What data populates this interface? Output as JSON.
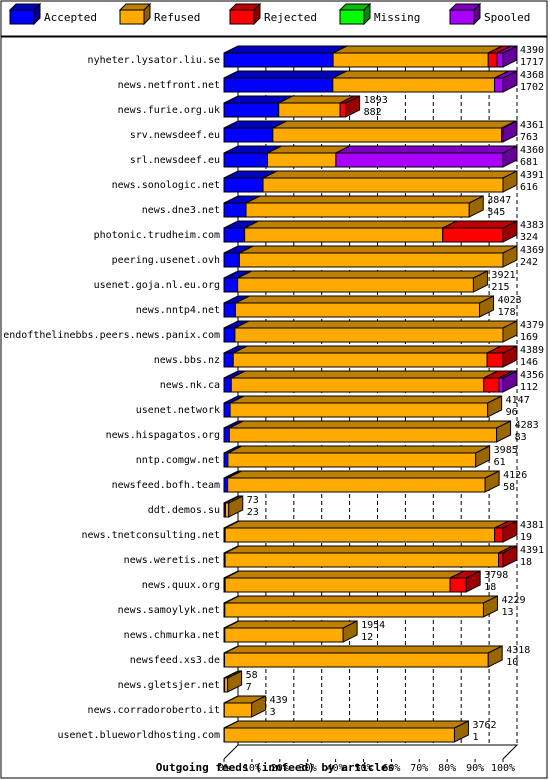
{
  "chart_data": {
    "type": "bar",
    "orientation": "horizontal",
    "stacked": true,
    "title": "Outgoing feeds (innfeed) by articles",
    "xlim": [
      0,
      100
    ],
    "x_ticks": [
      "0%",
      "10%",
      "20%",
      "30%",
      "40%",
      "50%",
      "60%",
      "70%",
      "80%",
      "90%",
      "100%"
    ],
    "grid": "vertical dashed",
    "legend_position": "top",
    "legend": [
      {
        "name": "Accepted",
        "color": "#0000ff"
      },
      {
        "name": "Refused",
        "color": "#ffaa00"
      },
      {
        "name": "Rejected",
        "color": "#ff0000"
      },
      {
        "name": "Missing",
        "color": "#00ff00"
      },
      {
        "name": "Spooled",
        "color": "#aa00ff"
      }
    ],
    "rows": [
      {
        "label": "nyheter.lysator.liu.se",
        "offered": "4390",
        "accepted": "1717",
        "segments": [
          39.1,
          55.6,
          3.2,
          0,
          2.1
        ]
      },
      {
        "label": "news.netfront.net",
        "offered": "4368",
        "accepted": "1702",
        "segments": [
          39.0,
          58.0,
          0,
          0,
          3.0
        ]
      },
      {
        "label": "news.furie.org.uk",
        "offered": "1893",
        "accepted": "882",
        "segments": [
          19.6,
          22.0,
          2.0,
          0,
          0
        ]
      },
      {
        "label": "srv.newsdeef.eu",
        "offered": "4361",
        "accepted": "763",
        "segments": [
          17.5,
          82.0,
          0,
          0,
          0.5
        ]
      },
      {
        "label": "srl.newsdeef.eu",
        "offered": "4360",
        "accepted": "681",
        "segments": [
          15.6,
          24.5,
          0,
          0,
          59.9
        ]
      },
      {
        "label": "news.sonologic.net",
        "offered": "4391",
        "accepted": "616",
        "segments": [
          14.0,
          86.0,
          0,
          0,
          0
        ]
      },
      {
        "label": "news.dne3.net",
        "offered": "3847",
        "accepted": "345",
        "segments": [
          7.9,
          80.0,
          0,
          0,
          0
        ]
      },
      {
        "label": "photonic.trudheim.com",
        "offered": "4383",
        "accepted": "324",
        "segments": [
          7.4,
          71.0,
          21.6,
          0,
          0
        ]
      },
      {
        "label": "peering.usenet.ovh",
        "offered": "4369",
        "accepted": "242",
        "segments": [
          5.5,
          94.5,
          0,
          0,
          0
        ]
      },
      {
        "label": "usenet.goja.nl.eu.org",
        "offered": "3921",
        "accepted": "215",
        "segments": [
          4.9,
          84.5,
          0,
          0,
          0
        ]
      },
      {
        "label": "news.nntp4.net",
        "offered": "4023",
        "accepted": "178",
        "segments": [
          4.1,
          87.5,
          0,
          0,
          0
        ]
      },
      {
        "label": "endofthelinebbs.peers.news.panix.com",
        "offered": "4379",
        "accepted": "169",
        "segments": [
          3.9,
          96.1,
          0,
          0,
          0
        ]
      },
      {
        "label": "news.bbs.nz",
        "offered": "4389",
        "accepted": "146",
        "segments": [
          3.3,
          91.0,
          5.7,
          0,
          0
        ]
      },
      {
        "label": "news.nk.ca",
        "offered": "4356",
        "accepted": "112",
        "segments": [
          2.6,
          90.5,
          5.5,
          0,
          1.4
        ]
      },
      {
        "label": "usenet.network",
        "offered": "4147",
        "accepted": "96",
        "segments": [
          2.2,
          92.3,
          0,
          0,
          0
        ]
      },
      {
        "label": "news.hispagatos.org",
        "offered": "4283",
        "accepted": "83",
        "segments": [
          1.9,
          95.8,
          0,
          0,
          0
        ]
      },
      {
        "label": "nntp.comgw.net",
        "offered": "3985",
        "accepted": "61",
        "segments": [
          1.4,
          88.8,
          0,
          0,
          0
        ]
      },
      {
        "label": "newsfeed.bofh.team",
        "offered": "4126",
        "accepted": "58",
        "segments": [
          1.3,
          92.3,
          0,
          0,
          0
        ]
      },
      {
        "label": "ddt.demos.su",
        "offered": "73",
        "accepted": "23",
        "segments": [
          0.5,
          1.2,
          0,
          0,
          0
        ]
      },
      {
        "label": "news.tnetconsulting.net",
        "offered": "4381",
        "accepted": "19",
        "segments": [
          0.4,
          96.6,
          3.0,
          0,
          0
        ]
      },
      {
        "label": "news.weretis.net",
        "offered": "4391",
        "accepted": "18",
        "segments": [
          0.4,
          98.0,
          1.6,
          0,
          0
        ]
      },
      {
        "label": "news.quux.org",
        "offered": "3798",
        "accepted": "18",
        "segments": [
          0.4,
          80.6,
          5.8,
          0,
          0
        ]
      },
      {
        "label": "news.samoylyk.net",
        "offered": "4229",
        "accepted": "13",
        "segments": [
          0.3,
          92.7,
          0,
          0,
          0
        ]
      },
      {
        "label": "news.chmurka.net",
        "offered": "1954",
        "accepted": "12",
        "segments": [
          0.3,
          42.4,
          0,
          0,
          0
        ]
      },
      {
        "label": "newsfeed.xs3.de",
        "offered": "4318",
        "accepted": "10",
        "segments": [
          0.2,
          94.5,
          0,
          0,
          0
        ]
      },
      {
        "label": "news.gletsjer.net",
        "offered": "58",
        "accepted": "7",
        "segments": [
          0.2,
          1.1,
          0,
          0,
          0
        ]
      },
      {
        "label": "news.corradoroberto.it",
        "offered": "439",
        "accepted": "3",
        "segments": [
          0.1,
          9.8,
          0,
          0,
          0
        ]
      },
      {
        "label": "usenet.blueworldhosting.com",
        "offered": "3762",
        "accepted": "1",
        "segments": [
          0.1,
          82.5,
          0,
          0,
          0
        ]
      }
    ]
  }
}
